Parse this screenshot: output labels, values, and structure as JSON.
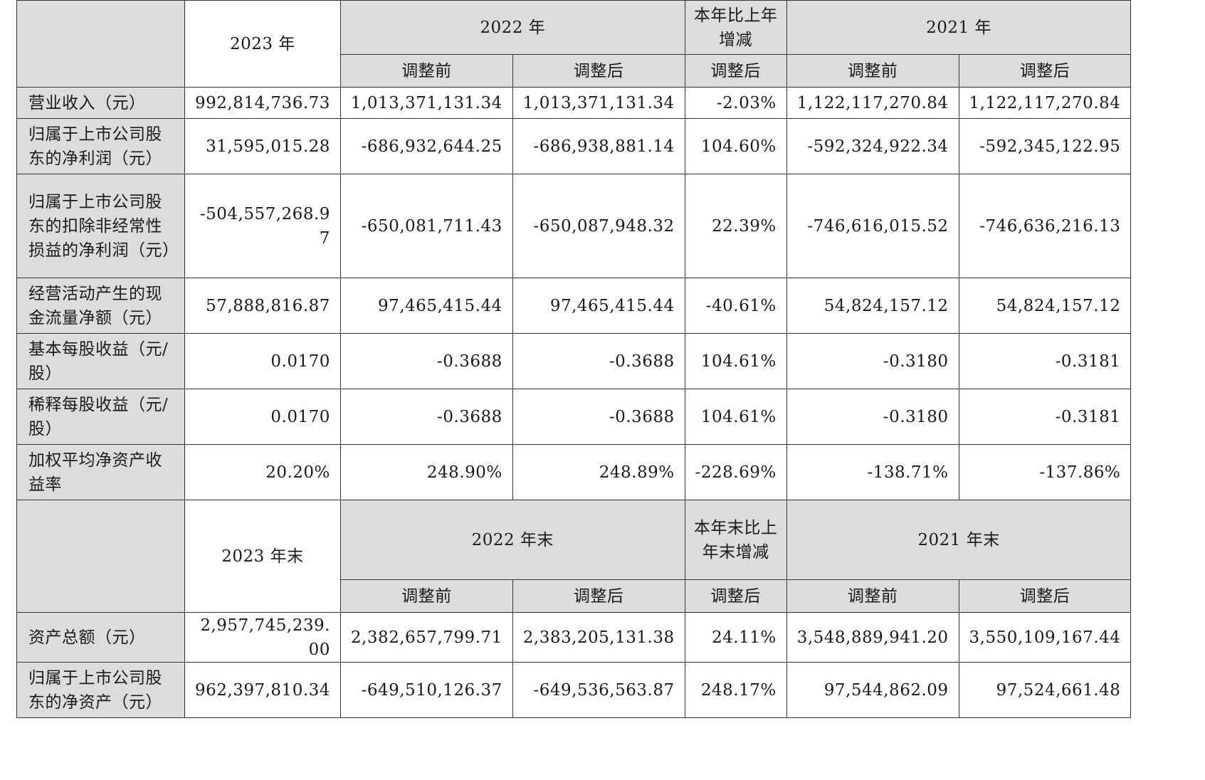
{
  "section1": {
    "header": {
      "col_2023": "2023 年",
      "col_2022": "2022 年",
      "col_change": "本年比上年增减",
      "col_2021": "2021 年",
      "sub_before": "调整前",
      "sub_after": "调整后"
    },
    "rows": [
      {
        "label": "营业收入（元）",
        "values": [
          "992,814,736.73",
          "1,013,371,131.34",
          "1,013,371,131.34",
          "-2.03%",
          "1,122,117,270.84",
          "1,122,117,270.84"
        ]
      },
      {
        "label": "归属于上市公司股东的净利润（元）",
        "values": [
          "31,595,015.28",
          "-686,932,644.25",
          "-686,938,881.14",
          "104.60%",
          "-592,324,922.34",
          "-592,345,122.95"
        ]
      },
      {
        "label": "归属于上市公司股东的扣除非经常性损益的净利润（元）",
        "values": [
          "-504,557,268.97",
          "-650,081,711.43",
          "-650,087,948.32",
          "22.39%",
          "-746,616,015.52",
          "-746,636,216.13"
        ]
      },
      {
        "label": "经营活动产生的现金流量净额（元）",
        "values": [
          "57,888,816.87",
          "97,465,415.44",
          "97,465,415.44",
          "-40.61%",
          "54,824,157.12",
          "54,824,157.12"
        ]
      },
      {
        "label": "基本每股收益（元/股）",
        "values": [
          "0.0170",
          "-0.3688",
          "-0.3688",
          "104.61%",
          "-0.3180",
          "-0.3181"
        ]
      },
      {
        "label": "稀释每股收益（元/股）",
        "values": [
          "0.0170",
          "-0.3688",
          "-0.3688",
          "104.61%",
          "-0.3180",
          "-0.3181"
        ]
      },
      {
        "label": "加权平均净资产收益率",
        "values": [
          "20.20%",
          "248.90%",
          "248.89%",
          "-228.69%",
          "-138.71%",
          "-137.86%"
        ]
      }
    ]
  },
  "section2": {
    "header": {
      "col_2023": "2023 年末",
      "col_2022": "2022 年末",
      "col_change": "本年末比上年末增减",
      "col_2021": "2021 年末",
      "sub_before": "调整前",
      "sub_after": "调整后"
    },
    "rows": [
      {
        "label": "资产总额（元）",
        "values": [
          "2,957,745,239.00",
          "2,382,657,799.71",
          "2,383,205,131.38",
          "24.11%",
          "3,548,889,941.20",
          "3,550,109,167.44"
        ]
      },
      {
        "label": "归属于上市公司股东的净资产（元）",
        "values": [
          "962,397,810.34",
          "-649,510,126.37",
          "-649,536,563.87",
          "248.17%",
          "97,544,862.09",
          "97,524,661.48"
        ]
      }
    ]
  }
}
